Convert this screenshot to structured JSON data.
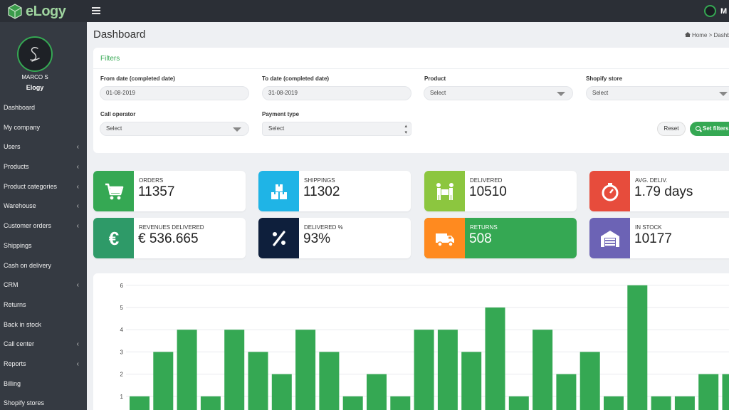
{
  "app": {
    "logo_text": "eLogy",
    "user_initial": "M",
    "colors": {
      "accent": "#35a853",
      "topbar": "#2b2f36",
      "sidebar": "#353a42"
    }
  },
  "sidebar": {
    "user_name": "MARCO S",
    "company": "Elogy",
    "items": [
      {
        "label": "Dashboard",
        "expandable": false
      },
      {
        "label": "My company",
        "expandable": false
      },
      {
        "label": "Users",
        "expandable": true
      },
      {
        "label": "Products",
        "expandable": true
      },
      {
        "label": "Product categories",
        "expandable": true
      },
      {
        "label": "Warehouse",
        "expandable": true
      },
      {
        "label": "Customer orders",
        "expandable": true
      },
      {
        "label": "Shippings",
        "expandable": false
      },
      {
        "label": "Cash on delivery",
        "expandable": false
      },
      {
        "label": "CRM",
        "expandable": true
      },
      {
        "label": "Returns",
        "expandable": false
      },
      {
        "label": "Back in stock",
        "expandable": false
      },
      {
        "label": "Call center",
        "expandable": true
      },
      {
        "label": "Reports",
        "expandable": true
      },
      {
        "label": "Billing",
        "expandable": false
      },
      {
        "label": "Shopify stores",
        "expandable": false
      }
    ]
  },
  "header": {
    "title": "Dashboard",
    "breadcrumb_home": "Home",
    "breadcrumb_current": "Dashboard"
  },
  "filters": {
    "title": "Filters",
    "from_date": {
      "label": "From date (completed date)",
      "value": "01-08-2019"
    },
    "to_date": {
      "label": "To date (completed date)",
      "value": "31-08-2019"
    },
    "product": {
      "label": "Product",
      "value": "Select"
    },
    "shopify_store": {
      "label": "Shopify store",
      "value": "Select"
    },
    "call_operator": {
      "label": "Call operator",
      "value": "Select"
    },
    "payment_type": {
      "label": "Payment type",
      "value": "Select"
    },
    "reset_label": "Reset",
    "set_label": "Set filters"
  },
  "stats": [
    {
      "label": "ORDERS",
      "value": "11357",
      "color": "#35a853",
      "icon": "cart-icon"
    },
    {
      "label": "SHIPPINGS",
      "value": "11302",
      "color": "#1fb4e6",
      "icon": "boxes-icon"
    },
    {
      "label": "DELIVERED",
      "value": "10510",
      "color": "#8cc63f",
      "icon": "carry-box-icon"
    },
    {
      "label": "AVG. DELIV.",
      "value": "1.79 days",
      "color": "#e74c3c",
      "icon": "stopwatch-icon"
    },
    {
      "label": "REVENUES DELIVERED",
      "value": "€ 536.665",
      "color": "#2e9a68",
      "icon": "euro-icon"
    },
    {
      "label": "DELIVERED %",
      "value": "93%",
      "color": "#0e1f3c",
      "icon": "percent-icon"
    },
    {
      "label": "RETURNS",
      "value": "508",
      "color": "#ff8a1f",
      "icon": "truck-icon",
      "highlight": true
    },
    {
      "label": "IN STOCK",
      "value": "10177",
      "color": "#6c63b5",
      "icon": "warehouse-icon"
    }
  ],
  "chart_data": {
    "type": "bar",
    "ylim": [
      0,
      6
    ],
    "yticks": [
      1,
      2,
      3,
      4,
      5,
      6
    ],
    "grid": true,
    "color": "#35a853",
    "values": [
      1,
      3,
      4,
      1,
      4,
      3,
      2,
      4,
      3,
      1,
      2,
      1,
      4,
      4,
      3,
      5,
      1,
      4,
      2,
      3,
      1,
      6,
      1,
      1,
      2,
      2
    ]
  }
}
